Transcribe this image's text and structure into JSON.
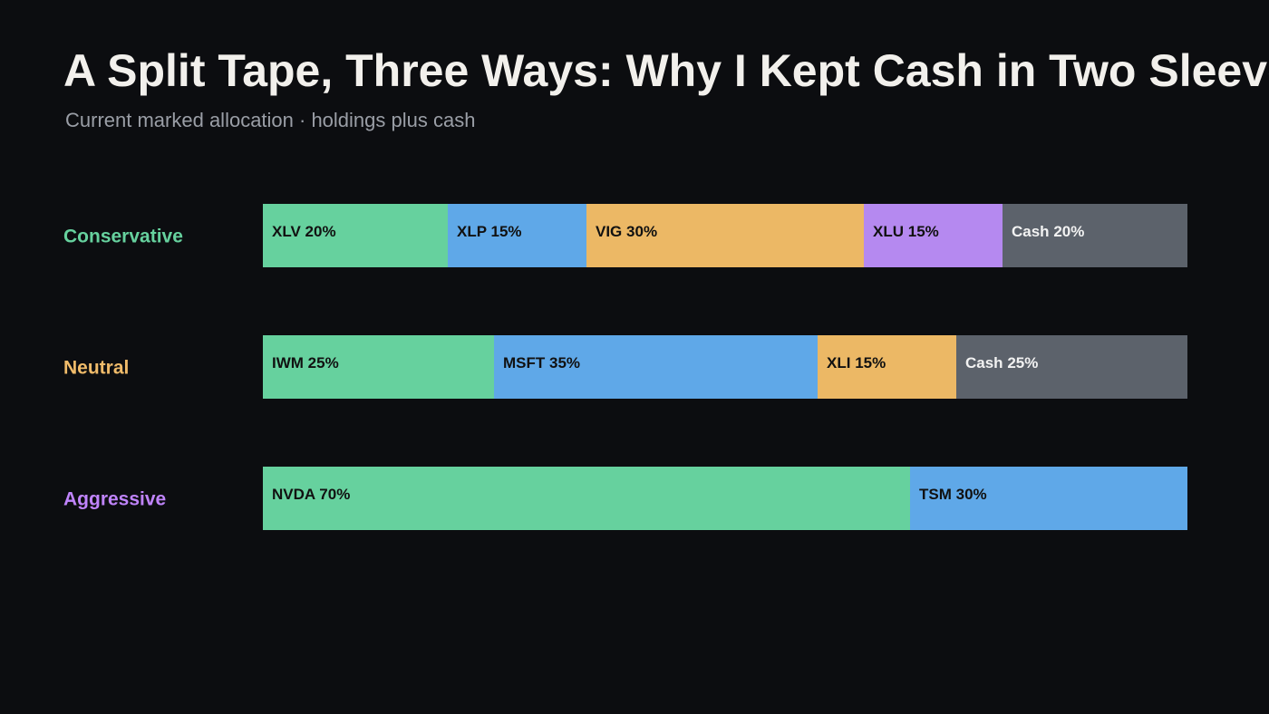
{
  "chart_data": {
    "type": "bar",
    "orientation": "horizontal",
    "stacked": true,
    "title": "A Split Tape, Three Ways: Why I Kept Cash in Two Sleeves",
    "subtitle": "Current marked allocation · holdings plus cash",
    "xlim": [
      0,
      100
    ],
    "rows": [
      {
        "name": "Conservative",
        "color": "#66d19e",
        "segments": [
          {
            "name": "XLV",
            "value": 20,
            "value_label": "20%",
            "color": "#66d19e",
            "label_color": "#111111"
          },
          {
            "name": "XLP",
            "value": 15,
            "value_label": "15%",
            "color": "#5fa8e8",
            "label_color": "#111111"
          },
          {
            "name": "VIG",
            "value": 30,
            "value_label": "30%",
            "color": "#ecb865",
            "label_color": "#111111"
          },
          {
            "name": "XLU",
            "value": 15,
            "value_label": "15%",
            "color": "#b589f0",
            "label_color": "#111111"
          },
          {
            "name": "Cash",
            "value": 20,
            "value_label": "20%",
            "color": "#5c626b",
            "label_color": "#f2f2f2"
          }
        ]
      },
      {
        "name": "Neutral",
        "color": "#f0bb6a",
        "segments": [
          {
            "name": "IWM",
            "value": 25,
            "value_label": "25%",
            "color": "#66d19e",
            "label_color": "#111111"
          },
          {
            "name": "MSFT",
            "value": 35,
            "value_label": "35%",
            "color": "#5fa8e8",
            "label_color": "#111111"
          },
          {
            "name": "XLI",
            "value": 15,
            "value_label": "15%",
            "color": "#ecb865",
            "label_color": "#111111"
          },
          {
            "name": "Cash",
            "value": 25,
            "value_label": "25%",
            "color": "#5c626b",
            "label_color": "#f2f2f2"
          }
        ]
      },
      {
        "name": "Aggressive",
        "color": "#c084fc",
        "segments": [
          {
            "name": "NVDA",
            "value": 70,
            "value_label": "70%",
            "color": "#66d19e",
            "label_color": "#111111"
          },
          {
            "name": "TSM",
            "value": 30,
            "value_label": "30%",
            "color": "#5fa8e8",
            "label_color": "#111111"
          }
        ]
      }
    ]
  }
}
